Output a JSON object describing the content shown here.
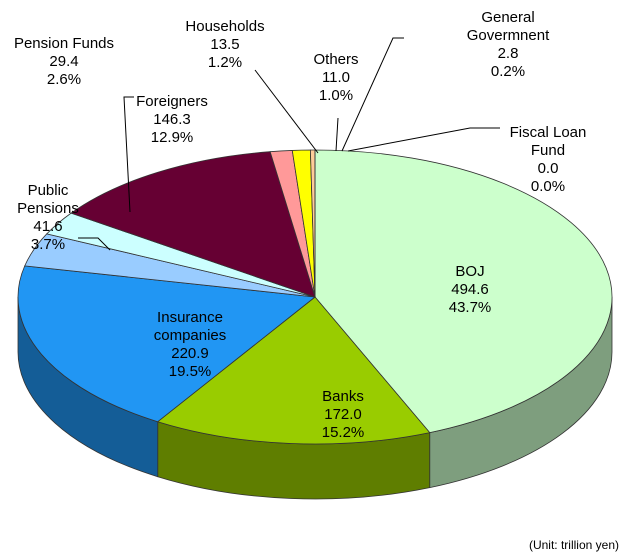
{
  "chart_data": {
    "type": "pie3d",
    "categories": [
      "BOJ",
      "Banks",
      "Insurance\ncompanies",
      "Public\nPensions",
      "Pension Funds",
      "Foreigners",
      "Households",
      "Others",
      "General Govermnent",
      "Fiscal Loan\nFund"
    ],
    "values": [
      494.6,
      172.0,
      220.9,
      41.6,
      29.4,
      146.3,
      13.5,
      11.0,
      2.8,
      0.0
    ],
    "value_labels": [
      "494.6",
      "172.0",
      "220.9",
      "41.6",
      "29.4",
      "146.3",
      "13.5",
      "11.0",
      "2.8",
      "0.0"
    ],
    "share_labels": [
      "43.7%",
      "15.2%",
      "19.5%",
      "3.7%",
      "2.6%",
      "12.9%",
      "1.2%",
      "1.0%",
      "0.2%",
      "0.0%"
    ],
    "colors": [
      "#ccffcc",
      "#99cc00",
      "#2196f3",
      "#99ccff",
      "#ccffff",
      "#660033",
      "#ff9999",
      "#ffff00",
      "#ffcc99",
      "#c0c0c0"
    ],
    "note": "(Unit: trillion yen)"
  }
}
